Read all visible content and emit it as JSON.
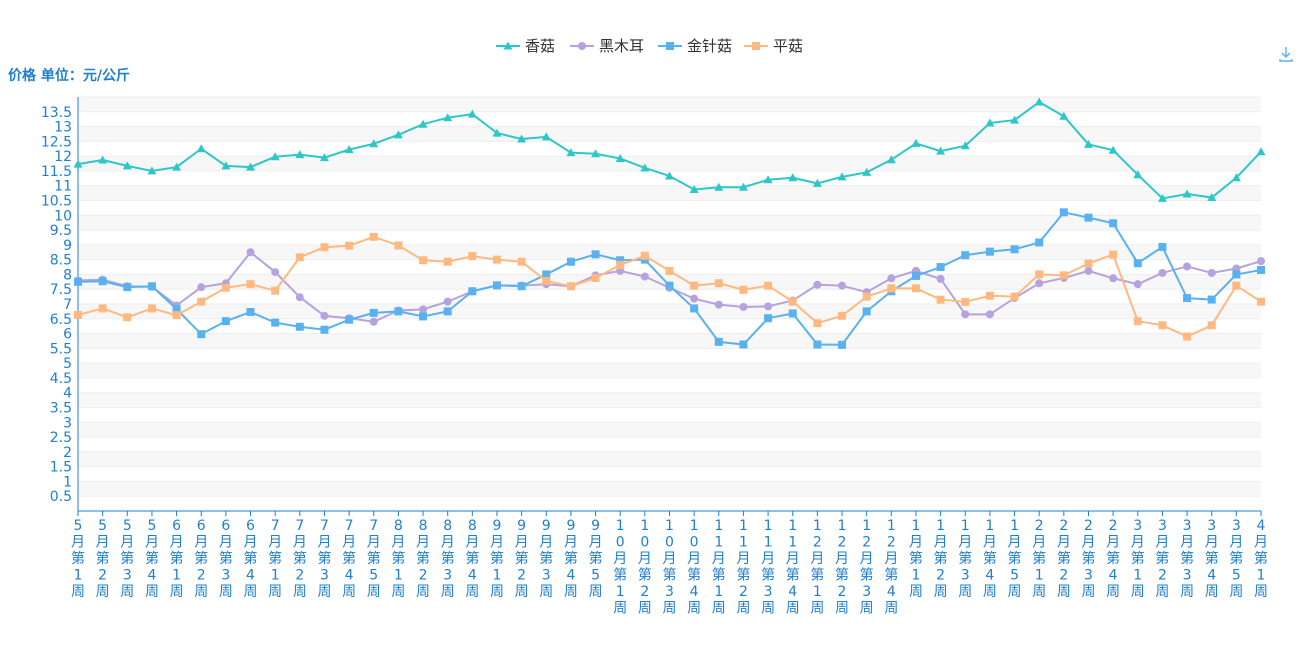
{
  "chart_data": {
    "type": "line",
    "ylabel": "价格 单位：元/公斤",
    "ylim": [
      0,
      14
    ],
    "y_ticks": [
      "0.5",
      "1",
      "1.5",
      "2",
      "2.5",
      "3",
      "3.5",
      "4",
      "4.5",
      "5",
      "5.5",
      "6",
      "6.5",
      "7",
      "7.5",
      "8",
      "8.5",
      "9",
      "9.5",
      "10",
      "10.5",
      "11",
      "11.5",
      "12",
      "12.5",
      "13",
      "13.5"
    ],
    "grid": true,
    "legend_position": "top-center",
    "categories": [
      "5月第1周",
      "5月第2周",
      "5月第3周",
      "5月第4周",
      "6月第1周",
      "6月第2周",
      "6月第3周",
      "6月第4周",
      "7月第1周",
      "7月第2周",
      "7月第3周",
      "7月第4周",
      "7月第5周",
      "8月第1周",
      "8月第2周",
      "8月第3周",
      "8月第4周",
      "9月第1周",
      "9月第2周",
      "9月第3周",
      "9月第4周",
      "9月第5周",
      "10月第1周",
      "10月第2周",
      "10月第3周",
      "10月第4周",
      "11月第1周",
      "11月第2周",
      "11月第3周",
      "11月第4周",
      "12月第1周",
      "12月第2周",
      "12月第3周",
      "12月第4周",
      "1月第1周",
      "1月第2周",
      "1月第3周",
      "1月第4周",
      "1月第5周",
      "2月第1周",
      "2月第2周",
      "2月第3周",
      "2月第4周",
      "3月第1周",
      "3月第2周",
      "3月第3周",
      "3月第4周",
      "3月第5周",
      "4月第1周"
    ],
    "series": [
      {
        "name": "香菇",
        "color": "#2ec7c9",
        "symbol": "triangle",
        "values": [
          11.73,
          11.87,
          11.67,
          11.5,
          11.63,
          12.25,
          11.67,
          11.63,
          11.98,
          12.05,
          11.95,
          12.22,
          12.42,
          12.72,
          13.08,
          13.3,
          13.42,
          12.78,
          12.58,
          12.65,
          12.12,
          12.08,
          11.92,
          11.6,
          11.33,
          10.87,
          10.95,
          10.95,
          11.2,
          11.27,
          11.08,
          11.3,
          11.45,
          11.88,
          12.43,
          12.17,
          12.35,
          13.12,
          13.22,
          13.83,
          13.35,
          12.4,
          12.2,
          11.37,
          10.57,
          10.72,
          10.6,
          11.27,
          12.15
        ]
      },
      {
        "name": "黑木耳",
        "color": "#b6a2de",
        "symbol": "circle",
        "values": [
          7.8,
          7.82,
          7.6,
          7.58,
          6.95,
          7.57,
          7.7,
          8.75,
          8.08,
          7.23,
          6.6,
          6.52,
          6.4,
          6.78,
          6.82,
          7.08,
          7.43,
          7.63,
          7.62,
          7.67,
          7.6,
          7.97,
          8.12,
          7.93,
          7.55,
          7.18,
          6.98,
          6.9,
          6.92,
          7.12,
          7.65,
          7.62,
          7.4,
          7.87,
          8.12,
          7.85,
          6.65,
          6.65,
          7.2,
          7.7,
          7.88,
          8.12,
          7.87,
          7.67,
          8.05,
          8.27,
          8.05,
          8.2,
          8.45
        ]
      },
      {
        "name": "金针菇",
        "color": "#5ab1ef",
        "symbol": "square",
        "values": [
          7.75,
          7.77,
          7.57,
          7.6,
          6.83,
          5.98,
          6.42,
          6.73,
          6.37,
          6.23,
          6.13,
          6.47,
          6.7,
          6.75,
          6.58,
          6.75,
          7.43,
          7.63,
          7.6,
          8.0,
          8.43,
          8.68,
          8.48,
          8.5,
          7.62,
          6.85,
          5.72,
          5.63,
          6.52,
          6.68,
          5.63,
          5.62,
          6.75,
          7.43,
          7.95,
          8.25,
          8.65,
          8.77,
          8.85,
          9.08,
          10.1,
          9.92,
          9.73,
          8.38,
          8.93,
          7.2,
          7.15,
          8.0,
          8.15
        ]
      },
      {
        "name": "平菇",
        "color": "#ffb980",
        "symbol": "square",
        "values": [
          6.63,
          6.85,
          6.55,
          6.85,
          6.62,
          7.08,
          7.55,
          7.67,
          7.45,
          8.58,
          8.92,
          8.97,
          9.27,
          8.98,
          8.48,
          8.43,
          8.62,
          8.5,
          8.43,
          7.78,
          7.6,
          7.88,
          8.32,
          8.63,
          8.12,
          7.62,
          7.7,
          7.48,
          7.62,
          7.08,
          6.35,
          6.6,
          7.25,
          7.53,
          7.53,
          7.15,
          7.07,
          7.28,
          7.25,
          8.0,
          7.97,
          8.37,
          8.67,
          6.42,
          6.28,
          5.9,
          6.28,
          7.62,
          7.08
        ]
      }
    ]
  },
  "toolbar": {
    "download_icon": "download-icon"
  }
}
